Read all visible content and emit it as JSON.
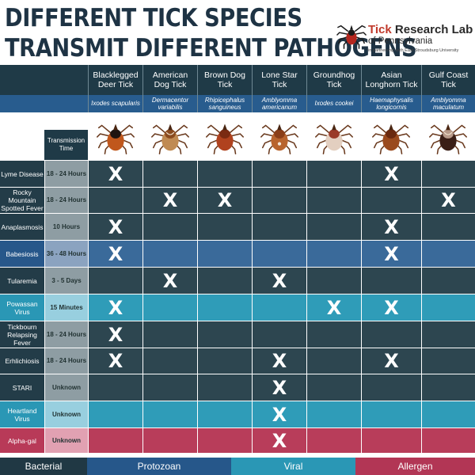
{
  "title": {
    "line1": "DIFFERENT TICK SPECIES",
    "line2": "TRANSMIT DIFFERENT PATHOGENS"
  },
  "brand": {
    "name_accent": "Tick",
    "name_rest": " Research Lab",
    "sub": "of Pennsylvania",
    "partner": "in partnership with East Stroudsburg University",
    "logo_icon": "tick-logo-icon"
  },
  "table": {
    "transmission_header": "Transmission Time",
    "ticks": [
      {
        "common": "Blacklegged Deer Tick",
        "scientific": "Ixodes scapularis",
        "icon": "blacklegged-tick-icon"
      },
      {
        "common": "American Dog Tick",
        "scientific": "Dermacentor variabilis",
        "icon": "american-dog-tick-icon"
      },
      {
        "common": "Brown Dog Tick",
        "scientific": "Rhipicephalus sanguineus",
        "icon": "brown-dog-tick-icon"
      },
      {
        "common": "Lone Star Tick",
        "scientific": "Amblyomma americanum",
        "icon": "lone-star-tick-icon"
      },
      {
        "common": "Groundhog Tick",
        "scientific": "Ixodes cookei",
        "icon": "groundhog-tick-icon"
      },
      {
        "common": "Asian Longhorn Tick",
        "scientific": "Haemaphysalis longicornis",
        "icon": "asian-longhorn-tick-icon"
      },
      {
        "common": "Gulf Coast Tick",
        "scientific": "Amblyomma maculatum",
        "icon": "gulf-coast-tick-icon"
      }
    ],
    "rows": [
      {
        "pathogen": "Lyme Disease",
        "time": "18 - 24 Hours",
        "type": "bacterial",
        "marks": [
          "X",
          "",
          "",
          "",
          "",
          "X",
          ""
        ]
      },
      {
        "pathogen": "Rocky Mountain Spotted Fever",
        "time": "18 - 24 Hours",
        "type": "bacterial",
        "marks": [
          "",
          "X",
          "X",
          "",
          "",
          "",
          "X"
        ]
      },
      {
        "pathogen": "Anaplasmosis",
        "time": "10 Hours",
        "type": "bacterial",
        "marks": [
          "X",
          "",
          "",
          "",
          "",
          "X",
          ""
        ]
      },
      {
        "pathogen": "Babesiosis",
        "time": "36 - 48 Hours",
        "type": "protozoan",
        "marks": [
          "X",
          "",
          "",
          "",
          "",
          "X",
          ""
        ]
      },
      {
        "pathogen": "Tularemia",
        "time": "3 - 5 Days",
        "type": "bacterial",
        "marks": [
          "",
          "X",
          "",
          "X",
          "",
          "",
          ""
        ]
      },
      {
        "pathogen": "Powassan Virus",
        "time": "15 Minutes",
        "type": "viral",
        "marks": [
          "X",
          "",
          "",
          "",
          "X",
          "X",
          ""
        ]
      },
      {
        "pathogen": "Tickbourn Relapsing Fever",
        "time": "18 - 24 Hours",
        "type": "bacterial",
        "marks": [
          "X",
          "",
          "",
          "",
          "",
          "",
          ""
        ]
      },
      {
        "pathogen": "Erhlichiosis",
        "time": "18 - 24 Hours",
        "type": "bacterial",
        "marks": [
          "X",
          "",
          "",
          "X",
          "",
          "X",
          ""
        ]
      },
      {
        "pathogen": "STARI",
        "time": "Unknown",
        "type": "bacterial",
        "marks": [
          "",
          "",
          "",
          "X",
          "",
          "",
          ""
        ]
      },
      {
        "pathogen": "Heartland Virus",
        "time": "Unknown",
        "type": "viral",
        "marks": [
          "",
          "",
          "",
          "X",
          "",
          "",
          ""
        ]
      },
      {
        "pathogen": "Alpha-gal",
        "time": "Unknown",
        "type": "allergen",
        "marks": [
          "",
          "",
          "",
          "X",
          "",
          "",
          ""
        ]
      }
    ]
  },
  "legend": [
    {
      "label": "Bacterial",
      "type": "bacterial"
    },
    {
      "label": "Protozoan",
      "type": "protozoan"
    },
    {
      "label": "Viral",
      "type": "viral"
    },
    {
      "label": "Allergen",
      "type": "allergen"
    }
  ],
  "colors": {
    "bacterial": {
      "label": "#233c48",
      "time": "#8e9da3",
      "cell": "#2d4650",
      "legend": "#203844"
    },
    "protozoan": {
      "label": "#27578a",
      "time": "#8ba3c0",
      "cell": "#3a6a9a",
      "legend": "#26578a"
    },
    "viral": {
      "label": "#2a97b5",
      "time": "#98cfdf",
      "cell": "#2f9cb8",
      "legend": "#2a97b5"
    },
    "allergen": {
      "label": "#b83a58",
      "time": "#e1a1b2",
      "cell": "#b83d5a",
      "legend": "#b23655"
    }
  }
}
